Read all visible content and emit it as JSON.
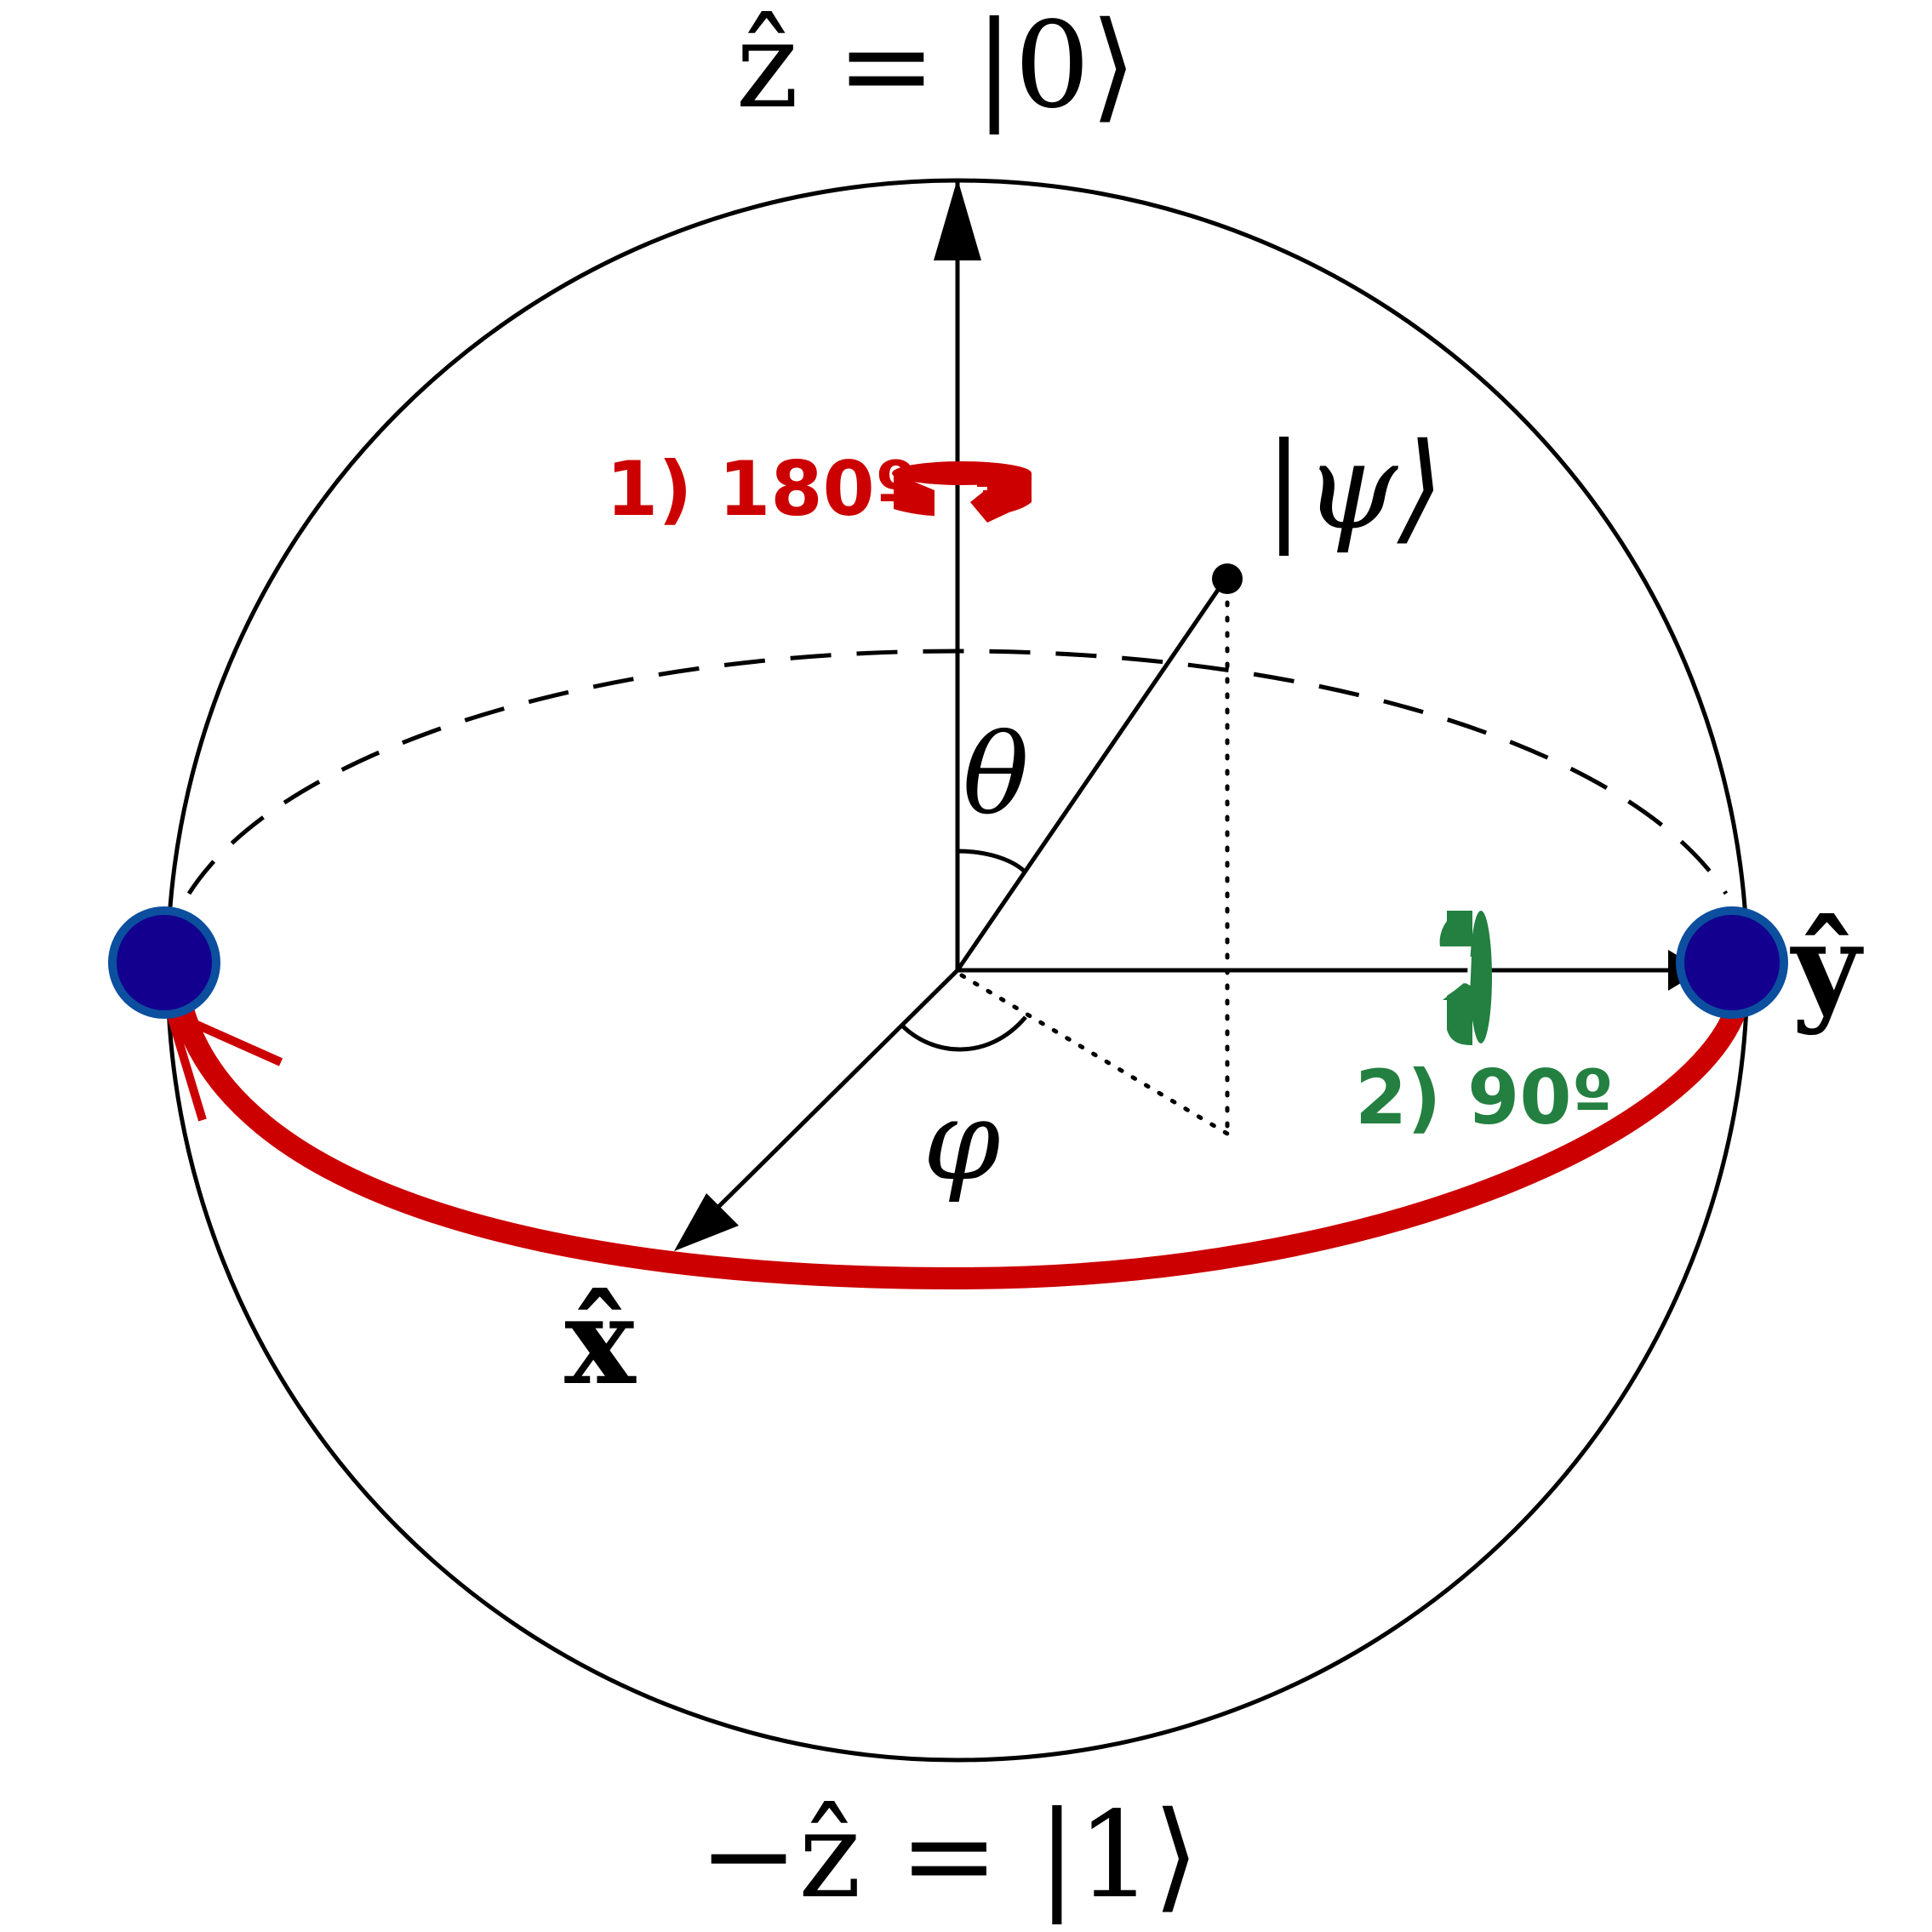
{
  "labels": {
    "z_axis": "ẑ = |0⟩",
    "neg_z_axis": "−ẑ = |1⟩",
    "x_axis": "x̂",
    "y_axis": "ŷ",
    "psi": "|ψ⟩",
    "theta": "θ",
    "phi": "φ"
  },
  "steps": [
    {
      "label": "1) 180º",
      "color": "#cc0000",
      "icon": "rotate-around-z-icon"
    },
    {
      "label": "2) 90º",
      "color": "#238040",
      "icon": "rotate-around-y-icon"
    }
  ],
  "colors": {
    "axis": "#000000",
    "path": "#cc0000",
    "state_fill": "#13008f",
    "state_stroke": "#0b4f9e",
    "step1": "#cc0000",
    "step2": "#238040"
  }
}
